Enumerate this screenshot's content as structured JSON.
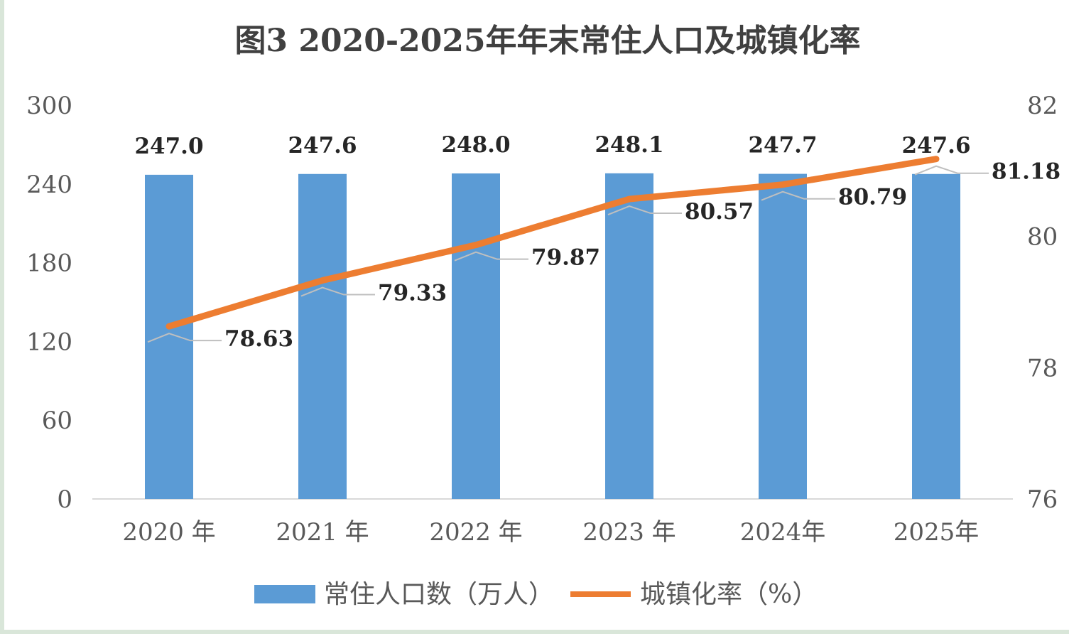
{
  "chart_data": {
    "type": "bar+line",
    "title": "图3  2020-2025年年末常住人口及城镇化率",
    "categories": [
      "2020 年",
      "2021 年",
      "2022 年",
      "2023 年",
      "2024年",
      "2025年"
    ],
    "series": [
      {
        "name": "常住人口数（万人）",
        "type": "bar",
        "axis": "left",
        "color": "#5b9bd5",
        "values": [
          247.0,
          247.6,
          248.0,
          248.1,
          247.7,
          247.6
        ],
        "labels": [
          "247.0",
          "247.6",
          "248.0",
          "248.1",
          "247.7",
          "247.6"
        ]
      },
      {
        "name": "城镇化率（%）",
        "type": "line",
        "axis": "right",
        "color": "#ed7d31",
        "values": [
          78.63,
          79.33,
          79.87,
          80.57,
          80.79,
          81.18
        ],
        "labels": [
          "78.63",
          "79.33",
          "79.87",
          "80.57",
          "80.79",
          "81.18"
        ]
      }
    ],
    "y_left": {
      "min": 0,
      "max": 300,
      "ticks": [
        "300",
        "240",
        "180",
        "120",
        "60",
        "0"
      ]
    },
    "y_right": {
      "min": 76,
      "max": 82,
      "ticks": [
        "82",
        "80",
        "78",
        "76"
      ]
    },
    "grid": false,
    "legend_position": "bottom"
  }
}
